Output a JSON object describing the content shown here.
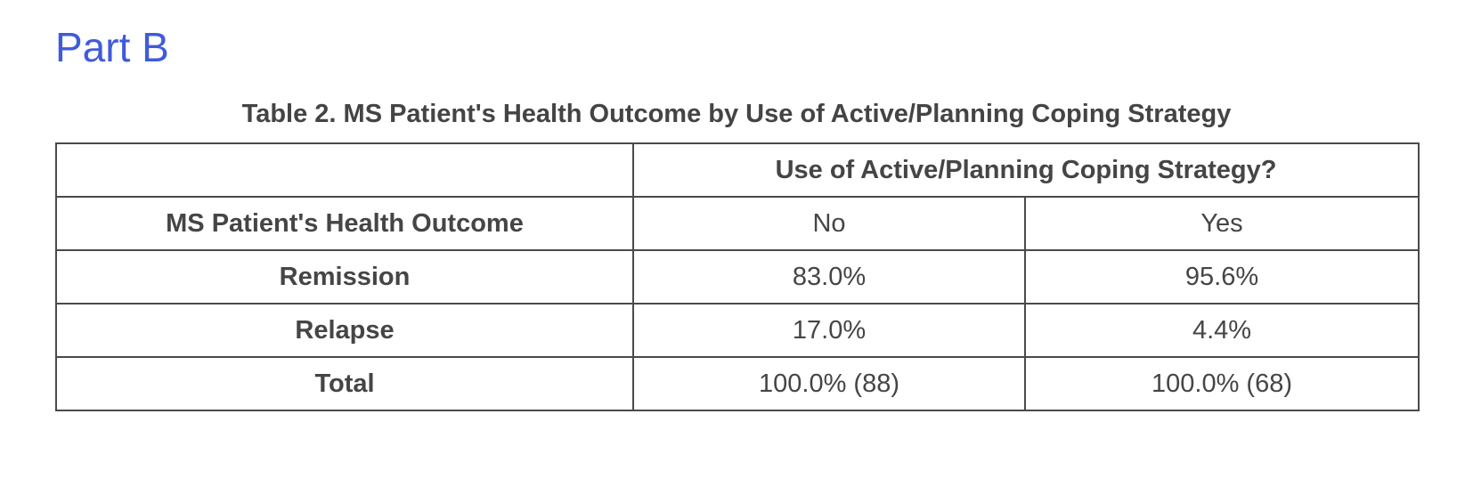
{
  "page": {
    "heading": "Part B"
  },
  "table": {
    "title": "Table 2. MS Patient's Health Outcome by Use of Active/Planning Coping Strategy",
    "span_header": "Use of Active/Planning Coping Strategy?",
    "row_header_label": "MS Patient's Health Outcome",
    "col_headers": [
      "No",
      "Yes"
    ],
    "rows": [
      {
        "label": "Remission",
        "no": "83.0%",
        "yes": "95.6%"
      },
      {
        "label": "Relapse",
        "no": "17.0%",
        "yes": "4.4%"
      },
      {
        "label": "Total",
        "no": "100.0% (88)",
        "yes": "100.0% (68)"
      }
    ]
  },
  "colors": {
    "heading_blue": "#3f5bdb",
    "text_gray": "#454545",
    "border_gray": "#4a4a4a",
    "background": "#ffffff"
  }
}
